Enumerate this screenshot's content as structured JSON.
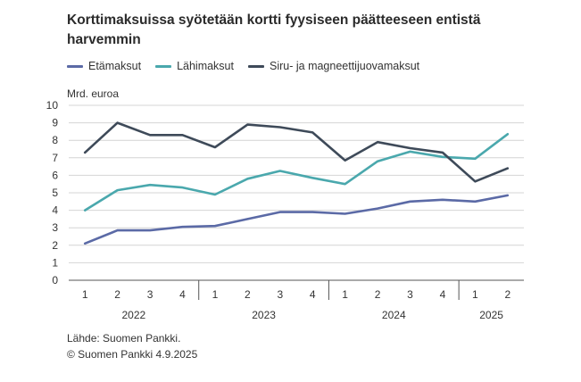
{
  "title": "Korttimaksuissa syötetään kortti fyysiseen päätteeseen entistä harvemmin",
  "legend": [
    {
      "label": "Etämaksut",
      "color": "#5b6aa6"
    },
    {
      "label": "Lähimaksut",
      "color": "#4aa8ad"
    },
    {
      "label": "Siru- ja magneettijuovamaksut",
      "color": "#3e4a59"
    }
  ],
  "unit_label": "Mrd. euroa",
  "footer": {
    "source": "Lähde: Suomen Pankki.",
    "copyright": "© Suomen Pankki 4.9.2025"
  },
  "chart_data": {
    "type": "line",
    "title": "Korttimaksuissa syötetään kortti fyysiseen päätteeseen entistä harvemmin",
    "ylabel": "Mrd. euroa",
    "ylim": [
      0,
      10
    ],
    "yticks": [
      "0",
      "1",
      "2",
      "3",
      "4",
      "5",
      "6",
      "7",
      "8",
      "9",
      "10"
    ],
    "categories": [
      "1",
      "2",
      "3",
      "4",
      "1",
      "2",
      "3",
      "4",
      "1",
      "2",
      "3",
      "4",
      "1",
      "2"
    ],
    "years": [
      {
        "label": "2022",
        "count": 4
      },
      {
        "label": "2023",
        "count": 4
      },
      {
        "label": "2024",
        "count": 4
      },
      {
        "label": "2025",
        "count": 2
      }
    ],
    "grid": "horizontal",
    "legend_position": "top",
    "series": [
      {
        "name": "Etämaksut",
        "color": "#5b6aa6",
        "values": [
          2.1,
          2.85,
          2.85,
          3.05,
          3.1,
          3.5,
          3.9,
          3.9,
          3.8,
          4.1,
          4.5,
          4.6,
          4.5,
          4.85
        ]
      },
      {
        "name": "Lähimaksut",
        "color": "#4aa8ad",
        "values": [
          4.0,
          5.15,
          5.45,
          5.3,
          4.9,
          5.8,
          6.25,
          5.85,
          5.5,
          6.8,
          7.35,
          7.05,
          6.95,
          8.35
        ]
      },
      {
        "name": "Siru- ja magneettijuovamaksut",
        "color": "#3e4a59",
        "values": [
          7.3,
          9.0,
          8.3,
          8.3,
          7.6,
          8.9,
          8.75,
          8.45,
          6.85,
          7.9,
          7.55,
          7.3,
          5.65,
          6.4
        ]
      }
    ]
  }
}
